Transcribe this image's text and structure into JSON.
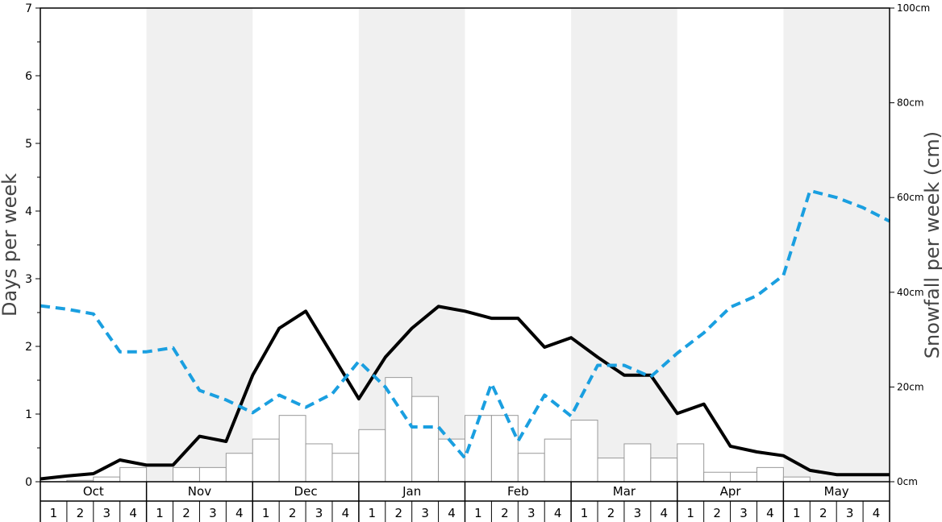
{
  "chart_data": {
    "type": "bar",
    "ylabel": "Days per week",
    "y2label": "Snowfall per week (cm)",
    "ylim": [
      0,
      7
    ],
    "y2lim": [
      0,
      100
    ],
    "y_ticks": [
      "0",
      "1",
      "2",
      "3",
      "4",
      "5",
      "6",
      "7"
    ],
    "y2_ticks": [
      "0cm",
      "20cm",
      "40cm",
      "60cm",
      "80cm",
      "100cm"
    ],
    "months": [
      "Oct",
      "Nov",
      "Dec",
      "Jan",
      "Feb",
      "Mar",
      "Apr",
      "May"
    ],
    "week_labels": [
      "1",
      "2",
      "3",
      "4"
    ],
    "shaded_months": [
      "Nov",
      "Jan",
      "Mar",
      "May"
    ],
    "colors": {
      "snowfall_line": "#000000",
      "days_line": "#1a9fe0",
      "bar_fill": "#ffffff",
      "bar_stroke": "#999999",
      "band": "#f0f0f0"
    },
    "series": [
      {
        "type": "bar",
        "axis": "left",
        "values": [
          0.0,
          0.02,
          0.07,
          0.21,
          0.0,
          0.21,
          0.21,
          0.42,
          0.63,
          0.98,
          0.56,
          0.42,
          0.77,
          1.54,
          1.26,
          0.63,
          0.98,
          0.98,
          0.42,
          0.63,
          0.91,
          0.35,
          0.56,
          0.35,
          0.56,
          0.14,
          0.14,
          0.21,
          0.07,
          0.0,
          0.0,
          0.0
        ]
      },
      {
        "type": "line",
        "axis": "right",
        "style": "solid",
        "values": [
          0.6,
          1.2,
          1.7,
          4.6,
          3.5,
          3.5,
          9.6,
          8.5,
          22.5,
          32.4,
          36.0,
          26.8,
          17.5,
          26.3,
          32.4,
          37.0,
          36.0,
          34.5,
          34.5,
          28.4,
          30.4,
          26.3,
          22.5,
          22.5,
          14.4,
          16.4,
          7.5,
          6.3,
          5.5,
          2.4,
          1.5,
          1.5,
          1.5
        ]
      },
      {
        "type": "line",
        "axis": "left",
        "style": "dashed",
        "values": [
          2.6,
          2.55,
          2.48,
          1.92,
          1.92,
          1.98,
          1.35,
          1.21,
          1.02,
          1.28,
          1.1,
          1.3,
          1.78,
          1.4,
          0.81,
          0.81,
          0.35,
          1.45,
          0.6,
          1.28,
          0.97,
          1.72,
          1.72,
          1.55,
          1.9,
          2.2,
          2.58,
          2.75,
          3.05,
          4.3,
          4.2,
          4.05,
          3.85
        ]
      }
    ]
  }
}
